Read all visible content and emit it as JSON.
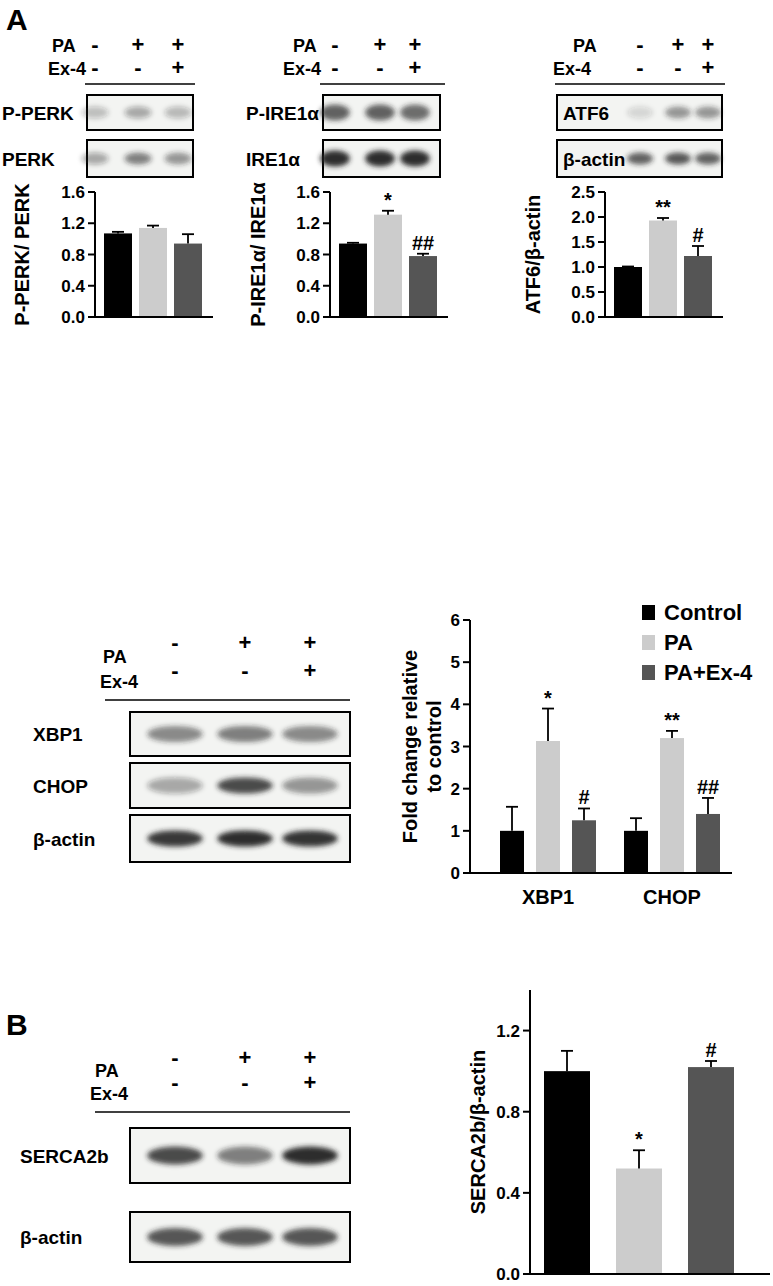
{
  "panels": [
    {
      "letter": "A"
    },
    {
      "letter": "B"
    }
  ],
  "blots": [
    {
      "treatments": [
        {
          "name": "PA",
          "signs": [
            "-",
            "+",
            "+"
          ]
        },
        {
          "name": "Ex-4",
          "signs": [
            "-",
            "-",
            "+"
          ]
        }
      ],
      "rows": [
        "P-PERK",
        "PERK"
      ]
    },
    {
      "treatments": [
        {
          "name": "PA",
          "signs": [
            "-",
            "+",
            "+"
          ]
        },
        {
          "name": "Ex-4",
          "signs": [
            "-",
            "-",
            "+"
          ]
        }
      ],
      "rows": [
        "P-IRE1α",
        "IRE1α"
      ]
    },
    {
      "treatments": [
        {
          "name": "PA",
          "signs": [
            "-",
            "+",
            "+"
          ]
        },
        {
          "name": "Ex-4",
          "signs": [
            "-",
            "-",
            "+"
          ]
        }
      ],
      "rows": [
        "ATF6",
        "β-actin"
      ]
    },
    {
      "treatments": [
        {
          "name": "PA",
          "signs": [
            "-",
            "+",
            "+"
          ]
        },
        {
          "name": "Ex-4",
          "signs": [
            "-",
            "-",
            "+"
          ]
        }
      ],
      "rows": [
        "XBP1",
        "CHOP",
        "β-actin"
      ]
    },
    {
      "treatments": [
        {
          "name": "PA",
          "signs": [
            "-",
            "+",
            "+"
          ]
        },
        {
          "name": "Ex-4",
          "signs": [
            "-",
            "-",
            "+"
          ]
        }
      ],
      "rows": [
        "SERCA2b",
        "β-actin"
      ]
    }
  ],
  "chart_data": [
    {
      "type": "bar",
      "y_label": "P-PERK/ PERK",
      "categories": [
        null,
        null,
        null
      ],
      "values": [
        1.07,
        1.14,
        0.94
      ],
      "errors": [
        0.02,
        0.03,
        0.12
      ],
      "colors": [
        "#000000",
        "#cccccc",
        "#555555"
      ],
      "grid": false,
      "ylim": [
        0,
        1.6
      ],
      "yticks": [
        {
          "value": 0,
          "label": "0.0"
        },
        0.4,
        0.8,
        1.2,
        1.6
      ],
      "annotations": []
    },
    {
      "type": "bar",
      "y_label": "P-IRE1α/ IRE1α",
      "categories": [
        null,
        null,
        null
      ],
      "values": [
        0.94,
        1.31,
        0.78
      ],
      "errors": [
        0.01,
        0.05,
        0.03
      ],
      "colors": [
        "#000000",
        "#cccccc",
        "#555555"
      ],
      "grid": false,
      "ylim": [
        0,
        1.6
      ],
      "yticks": [
        {
          "value": 0,
          "label": "0.0"
        },
        0.4,
        0.8,
        1.2,
        1.6
      ],
      "annotations": [
        {
          "index": 1,
          "text": "*"
        },
        {
          "index": 2,
          "text": "##"
        }
      ]
    },
    {
      "type": "bar",
      "y_label": "ATF6/β-actin",
      "categories": [
        null,
        null,
        null
      ],
      "values": [
        1.0,
        1.93,
        1.22
      ],
      "errors": [
        0.01,
        0.05,
        0.2
      ],
      "colors": [
        "#000000",
        "#cccccc",
        "#555555"
      ],
      "grid": false,
      "ylim": [
        0,
        2.5
      ],
      "yticks": [
        {
          "value": 0,
          "label": "0.0"
        },
        0.5,
        {
          "value": 1,
          "label": "1.0"
        },
        1.5,
        {
          "value": 2,
          "label": "2.0"
        },
        2.5
      ],
      "annotations": [
        {
          "index": 1,
          "text": "**"
        },
        {
          "index": 2,
          "text": "#"
        }
      ]
    },
    {
      "type": "bar",
      "y_label": "Fold change relative to control",
      "categories": [
        "XBP1",
        "CHOP"
      ],
      "series": [
        {
          "name": "Control",
          "color": "#000000",
          "values": [
            1.0,
            1.0
          ],
          "errors": [
            0.57,
            0.3
          ]
        },
        {
          "name": "PA",
          "color": "#cccccc",
          "values": [
            3.13,
            3.2
          ],
          "errors": [
            0.77,
            0.17
          ]
        },
        {
          "name": "PA+Ex-4",
          "color": "#555555",
          "values": [
            1.25,
            1.4
          ],
          "errors": [
            0.28,
            0.38
          ]
        }
      ],
      "legend": "upper right",
      "grid": false,
      "ylim": [
        0,
        6
      ],
      "yticks": [
        0,
        1,
        2,
        3,
        4,
        5,
        6
      ],
      "annotations": [
        {
          "series": 1,
          "index": 0,
          "text": "*"
        },
        {
          "series": 2,
          "index": 0,
          "text": "#"
        },
        {
          "series": 1,
          "index": 1,
          "text": "**"
        },
        {
          "series": 2,
          "index": 1,
          "text": "##"
        }
      ]
    },
    {
      "type": "bar",
      "y_label": "SERCA2b/β-actin",
      "categories": [
        null,
        null,
        null
      ],
      "values": [
        1.0,
        0.52,
        1.02
      ],
      "errors": [
        0.1,
        0.09,
        0.03
      ],
      "colors": [
        "#000000",
        "#cccccc",
        "#555555"
      ],
      "grid": false,
      "ylim": [
        0,
        1.4
      ],
      "yticks": [
        {
          "value": 0,
          "label": "0.0"
        },
        0.4,
        0.8,
        1.2
      ],
      "annotations": [
        {
          "index": 1,
          "text": "*"
        },
        {
          "index": 2,
          "text": "#"
        }
      ]
    }
  ]
}
